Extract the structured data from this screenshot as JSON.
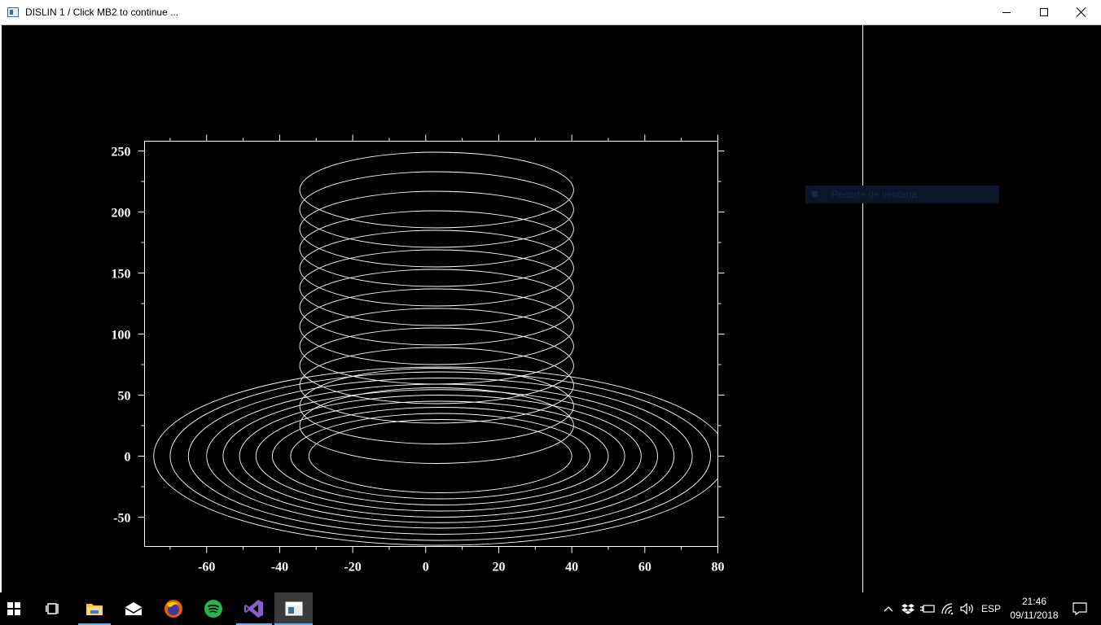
{
  "window": {
    "title": "DISLIN 1 / Click MB2 to continue ...",
    "buttons": {
      "minimize": "minimize-icon",
      "maximize": "maximize-icon",
      "close": "close-icon"
    }
  },
  "ghost_tooltip": "Recorte de ventana",
  "chart_data": {
    "type": "line",
    "title": "",
    "xlabel": "",
    "ylabel": "",
    "xlim": [
      -77,
      80
    ],
    "ylim": [
      -74,
      258
    ],
    "x_ticks": [
      -60,
      -40,
      -20,
      0,
      20,
      40,
      60,
      80
    ],
    "y_ticks": [
      -50,
      0,
      50,
      100,
      150,
      200,
      250
    ],
    "grid": false,
    "color": "#ffffff",
    "series": [
      {
        "description_shape": "flat spiral (ellipses) centered at x=4, y=0",
        "center": [
          4,
          0
        ],
        "rings": [
          {
            "rx": 78.5,
            "ry": 73
          },
          {
            "rx": 74,
            "ry": 69
          },
          {
            "rx": 69,
            "ry": 64
          },
          {
            "rx": 64,
            "ry": 59
          },
          {
            "rx": 59.5,
            "ry": 54.5
          },
          {
            "rx": 55,
            "ry": 50
          },
          {
            "rx": 50.5,
            "ry": 45
          },
          {
            "rx": 46,
            "ry": 40
          },
          {
            "rx": 41,
            "ry": 35
          },
          {
            "rx": 36,
            "ry": 30
          }
        ]
      },
      {
        "description_shape": "vertical helix (stacked ellipses) centered at x=3",
        "center_x": 3,
        "rx": 37.5,
        "ry": 31,
        "y_centers": [
          25,
          41,
          58,
          74,
          90,
          106,
          122,
          138,
          154,
          170,
          186,
          202,
          218
        ]
      }
    ]
  },
  "taskbar": {
    "items": [
      {
        "name": "start-button",
        "icon": "windows-logo-icon"
      },
      {
        "name": "task-view-button",
        "icon": "task-view-icon"
      },
      {
        "name": "file-explorer",
        "icon": "folder-icon"
      },
      {
        "name": "mail",
        "icon": "mail-icon"
      },
      {
        "name": "firefox",
        "icon": "firefox-icon"
      },
      {
        "name": "spotify",
        "icon": "spotify-icon"
      },
      {
        "name": "visual-studio",
        "icon": "visual-studio-icon"
      },
      {
        "name": "dislin-window",
        "icon": "app-window-icon"
      }
    ],
    "language": "ESP",
    "time": "21:46",
    "date": "09/11/2018"
  }
}
